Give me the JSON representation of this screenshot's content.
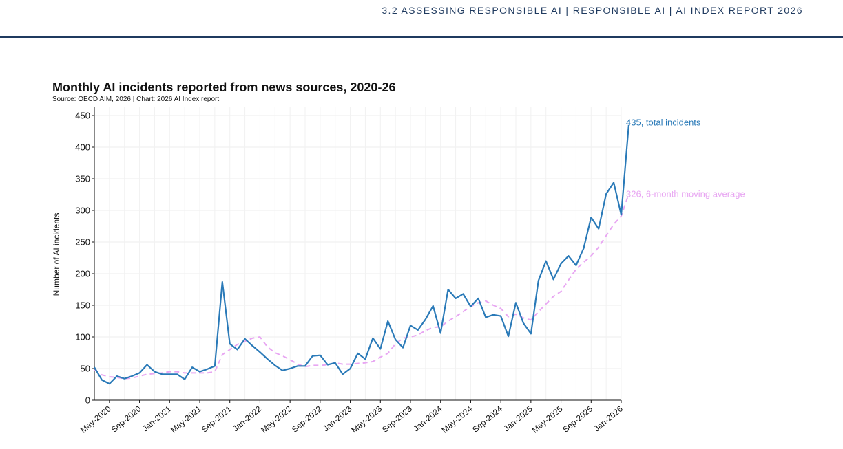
{
  "header": {
    "text": "3.2 ASSESSING RESPONSIBLE AI  |  RESPONSIBLE AI  |  AI INDEX REPORT 2026"
  },
  "chart_data": {
    "type": "line",
    "title": "Monthly AI incidents reported from news sources, 2020-26",
    "source": "Source: OECD AIM, 2026 | Chart: 2026 AI Index report",
    "xlabel": "",
    "ylabel": "Number of AI incidents",
    "ylim": [
      0,
      450
    ],
    "yticks": [
      0,
      50,
      100,
      150,
      200,
      250,
      300,
      350,
      400,
      450
    ],
    "x_start": "Mar-2020",
    "x_end": "Jan-2026",
    "xticks": [
      "May-2020",
      "Sep-2020",
      "Jan-2021",
      "May-2021",
      "Sep-2021",
      "Jan-2022",
      "May-2022",
      "Sep-2022",
      "Jan-2023",
      "May-2023",
      "Sep-2023",
      "Jan-2024",
      "May-2024",
      "Sep-2024",
      "Jan-2025",
      "May-2025",
      "Sep-2025",
      "Jan-2026"
    ],
    "grid": true,
    "colors": {
      "total": "#2a7ab8",
      "average": "#e8a6f2",
      "header": "#1f3a5f"
    },
    "series": [
      {
        "key": "total",
        "style": "solid",
        "end_label": "435, total incidents",
        "values": [
          52,
          32,
          26,
          38,
          34,
          38,
          43,
          56,
          45,
          41,
          41,
          41,
          33,
          52,
          45,
          49,
          54,
          187,
          89,
          80,
          97,
          86,
          76,
          65,
          55,
          47,
          50,
          54,
          54,
          70,
          71,
          56,
          59,
          41,
          50,
          74,
          65,
          98,
          81,
          125,
          96,
          83,
          118,
          111,
          128,
          149,
          106,
          175,
          161,
          168,
          148,
          161,
          131,
          135,
          133,
          101,
          154,
          122,
          105,
          189,
          220,
          191,
          216,
          228,
          213,
          240,
          289,
          271,
          326,
          344,
          293,
          435
        ]
      },
      {
        "key": "average",
        "style": "dashed",
        "end_label": "326, 6-month moving average",
        "values": [
          48,
          40,
          37,
          36,
          34,
          35,
          38,
          41,
          42,
          43,
          45,
          45,
          43,
          43,
          43,
          43,
          45,
          72,
          80,
          88,
          93,
          98,
          100,
          84,
          75,
          70,
          64,
          57,
          53,
          55,
          55,
          56,
          59,
          57,
          57,
          58,
          59,
          61,
          68,
          74,
          89,
          98,
          100,
          103,
          110,
          115,
          116,
          125,
          132,
          140,
          148,
          154,
          157,
          150,
          145,
          132,
          136,
          130,
          127,
          140,
          152,
          164,
          172,
          190,
          207,
          218,
          228,
          242,
          260,
          278,
          291,
          326
        ]
      }
    ]
  }
}
